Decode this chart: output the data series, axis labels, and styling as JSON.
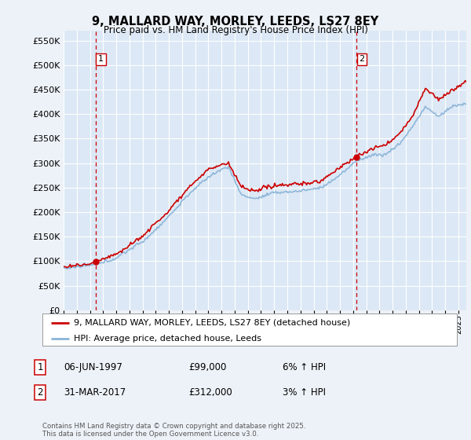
{
  "title": "9, MALLARD WAY, MORLEY, LEEDS, LS27 8EY",
  "subtitle": "Price paid vs. HM Land Registry's House Price Index (HPI)",
  "ylim": [
    0,
    570000
  ],
  "yticks": [
    0,
    50000,
    100000,
    150000,
    200000,
    250000,
    300000,
    350000,
    400000,
    450000,
    500000,
    550000
  ],
  "ytick_labels": [
    "£0",
    "£50K",
    "£100K",
    "£150K",
    "£200K",
    "£250K",
    "£300K",
    "£350K",
    "£400K",
    "£450K",
    "£500K",
    "£550K"
  ],
  "background_color": "#edf2f8",
  "plot_bg_color": "#dce8f5",
  "grid_color": "#ffffff",
  "line_color_hpi": "#8ab4d8",
  "line_color_property": "#cc0000",
  "purchase1_year": 1997.44,
  "purchase1_price": 99000,
  "purchase2_year": 2017.25,
  "purchase2_price": 312000,
  "legend_property": "9, MALLARD WAY, MORLEY, LEEDS, LS27 8EY (detached house)",
  "legend_hpi": "HPI: Average price, detached house, Leeds",
  "footer": "Contains HM Land Registry data © Crown copyright and database right 2025.\nThis data is licensed under the Open Government Licence v3.0.",
  "dashed_line_color": "#cc0000",
  "ann1_date": "06-JUN-1997",
  "ann1_price": "£99,000",
  "ann1_hpi": "6% ↑ HPI",
  "ann2_date": "31-MAR-2017",
  "ann2_price": "£312,000",
  "ann2_hpi": "3% ↑ HPI"
}
